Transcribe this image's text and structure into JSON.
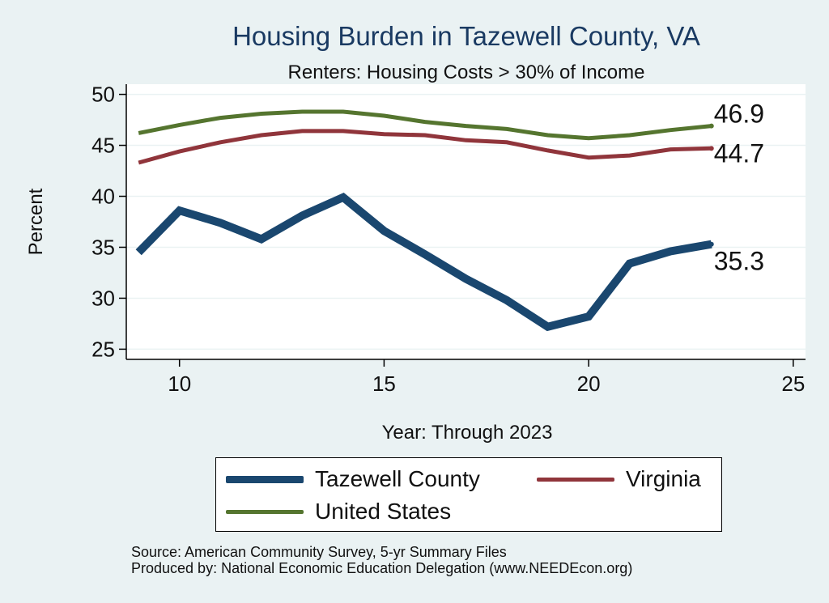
{
  "chart_data": {
    "type": "line",
    "title": "Housing Burden in Tazewell County, VA",
    "subtitle": "Renters: Housing Costs > 30% of Income",
    "xlabel": "Year: Through 2023",
    "ylabel": "Percent",
    "xlim": [
      8.7,
      25.3
    ],
    "ylim": [
      24.0,
      51.0
    ],
    "xticks": [
      10,
      15,
      20,
      25
    ],
    "yticks": [
      25,
      30,
      35,
      40,
      45,
      50
    ],
    "grid": true,
    "legend_placement": "bottom",
    "series": [
      {
        "name": "Tazewell County",
        "color": "#1a476f",
        "x": [
          9,
          10,
          11,
          12,
          13,
          14,
          15,
          16,
          17,
          18,
          19,
          20,
          21,
          22,
          23
        ],
        "values": [
          34.5,
          38.6,
          37.4,
          35.8,
          38.1,
          39.9,
          36.6,
          34.3,
          31.9,
          29.8,
          27.2,
          28.2,
          33.4,
          34.6,
          35.3
        ],
        "end_label": "35.3"
      },
      {
        "name": "Virginia",
        "color": "#90353b",
        "x": [
          9,
          10,
          11,
          12,
          13,
          14,
          15,
          16,
          17,
          18,
          19,
          20,
          21,
          22,
          23
        ],
        "values": [
          43.3,
          44.4,
          45.3,
          46.0,
          46.4,
          46.4,
          46.1,
          46.0,
          45.5,
          45.3,
          44.5,
          43.8,
          44.0,
          44.6,
          44.7
        ],
        "end_label": "44.7"
      },
      {
        "name": "United States",
        "color": "#55752f",
        "x": [
          9,
          10,
          11,
          12,
          13,
          14,
          15,
          16,
          17,
          18,
          19,
          20,
          21,
          22,
          23
        ],
        "values": [
          46.2,
          47.0,
          47.7,
          48.1,
          48.3,
          48.3,
          47.9,
          47.3,
          46.9,
          46.6,
          46.0,
          45.7,
          46.0,
          46.5,
          46.9
        ],
        "end_label": "46.9"
      }
    ]
  },
  "legend": {
    "items": [
      {
        "label": "Tazewell County",
        "color": "#1a476f"
      },
      {
        "label": "Virginia",
        "color": "#90353b"
      },
      {
        "label": "United States",
        "color": "#55752f"
      }
    ]
  },
  "source": {
    "line1": "Source: American Community Survey, 5-yr Summary Files",
    "line2": "Produced by: National Economic Education Delegation (www.NEEDEcon.org)"
  }
}
